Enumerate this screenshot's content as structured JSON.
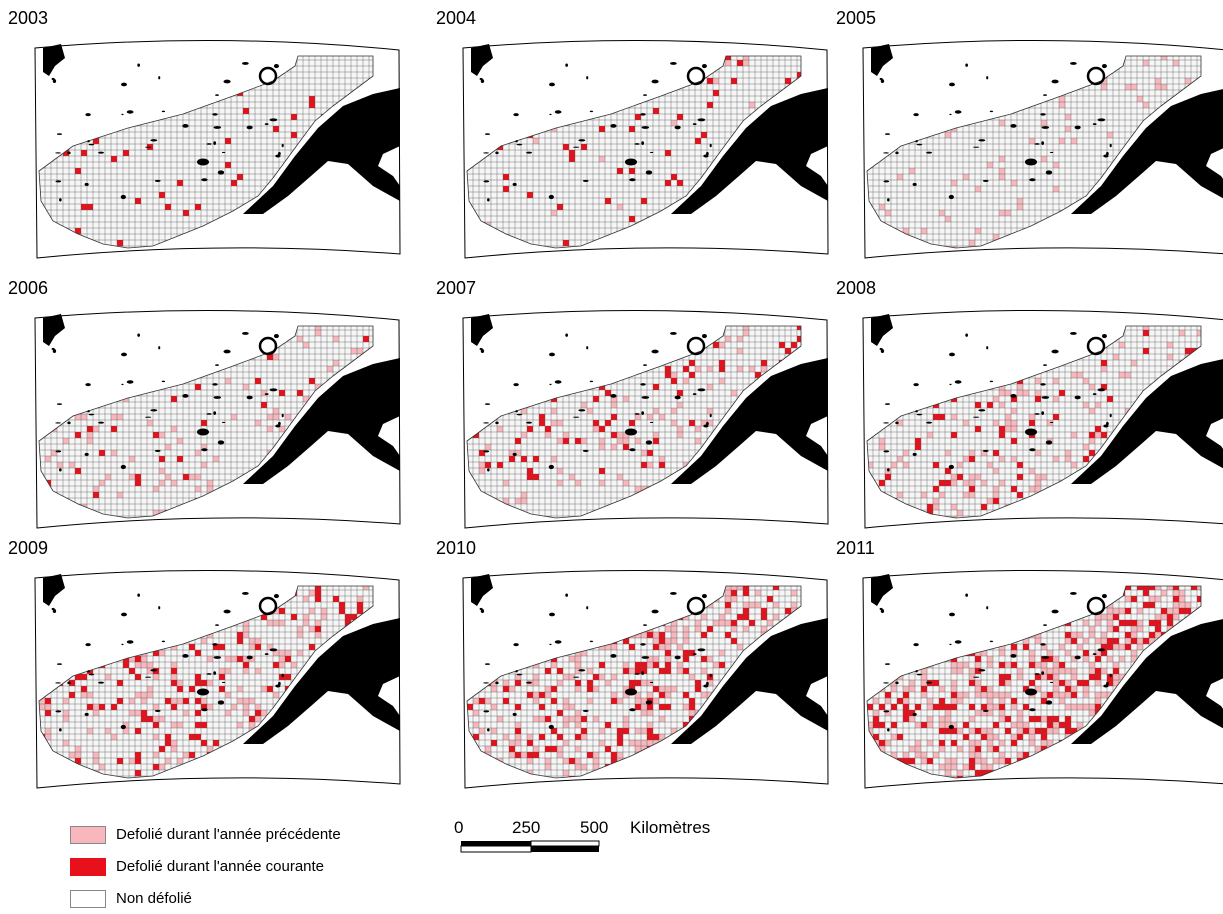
{
  "colors": {
    "prev_year": "#f7b7bd",
    "current_year": "#e8101a",
    "not_defoliated": "#ffffff",
    "water": "#000000"
  },
  "panels": [
    {
      "year": "2003",
      "prev_level": 0.0,
      "current_level": 0.03
    },
    {
      "year": "2004",
      "prev_level": 0.01,
      "current_level": 0.04
    },
    {
      "year": "2005",
      "prev_level": 0.05,
      "current_level": 0.0
    },
    {
      "year": "2006",
      "prev_level": 0.07,
      "current_level": 0.02
    },
    {
      "year": "2007",
      "prev_level": 0.08,
      "current_level": 0.05
    },
    {
      "year": "2008",
      "prev_level": 0.12,
      "current_level": 0.06
    },
    {
      "year": "2009",
      "prev_level": 0.14,
      "current_level": 0.1
    },
    {
      "year": "2010",
      "prev_level": 0.2,
      "current_level": 0.13
    },
    {
      "year": "2011",
      "prev_level": 0.28,
      "current_level": 0.16
    }
  ],
  "legend": {
    "items": [
      {
        "label": "Defolié durant l'année précédente",
        "color_key": "prev_year"
      },
      {
        "label": "Defolié durant l'année courante",
        "color_key": "current_year"
      },
      {
        "label": "Non défolié",
        "color_key": "not_defoliated"
      }
    ]
  },
  "scale_bar": {
    "labels": [
      "0",
      "250",
      "500"
    ],
    "unit": "Kilomètres"
  }
}
